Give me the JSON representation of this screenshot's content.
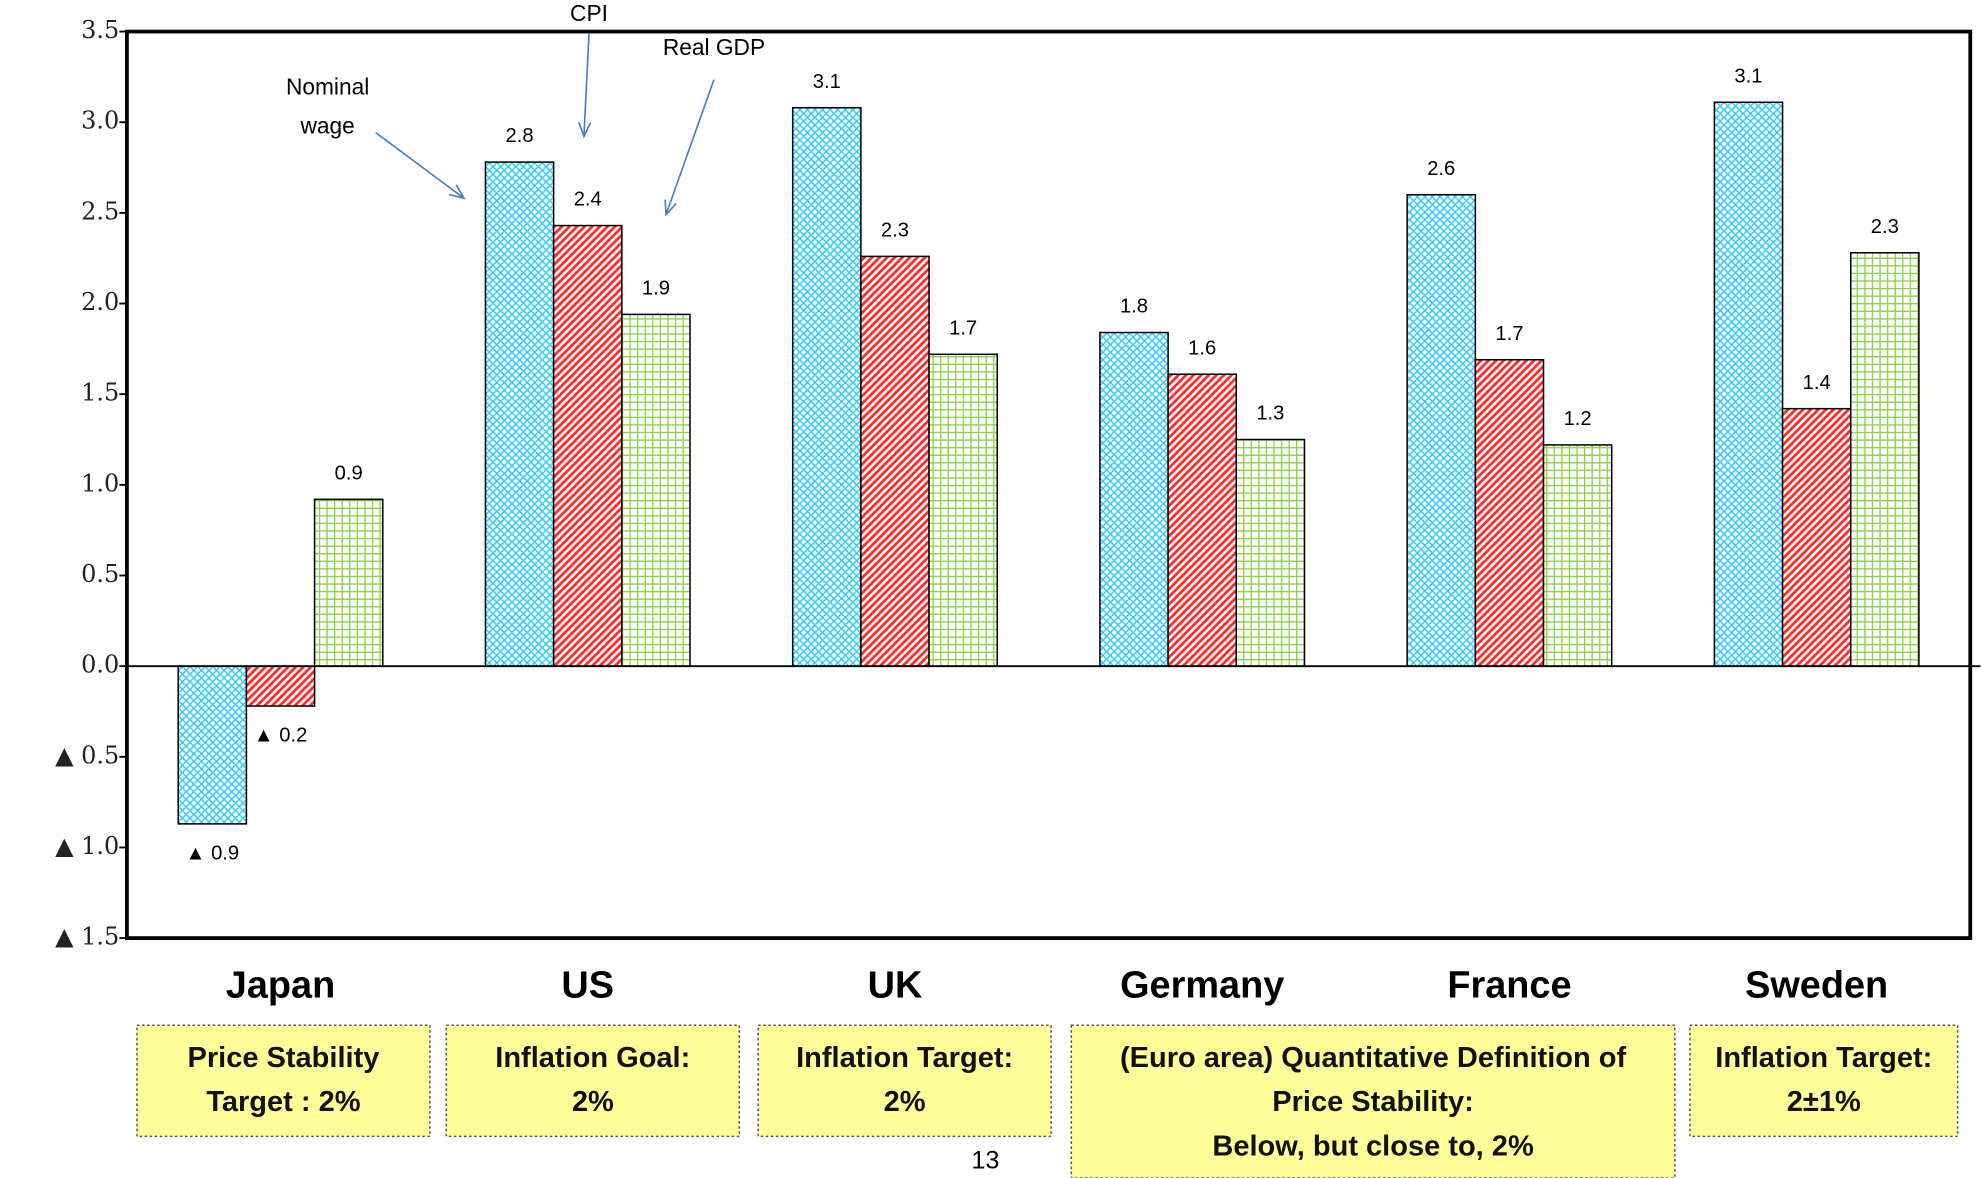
{
  "chart_data": {
    "type": "bar",
    "categories": [
      "Japan",
      "US",
      "UK",
      "Germany",
      "France",
      "Sweden"
    ],
    "series": [
      {
        "name": "Nominal wage",
        "color": "#33ccff",
        "hatch": "crosshatch",
        "values": [
          -0.87,
          2.78,
          3.08,
          1.84,
          2.6,
          3.11
        ],
        "value_labels": [
          "▲ 0.9",
          "2.8",
          "3.1",
          "1.8",
          "2.6",
          "3.1"
        ]
      },
      {
        "name": "CPI",
        "color": "#ff2a2a",
        "hatch": "diagonal",
        "values": [
          -0.22,
          2.43,
          2.26,
          1.61,
          1.69,
          1.42
        ],
        "value_labels": [
          "▲ 0.2",
          "2.4",
          "2.3",
          "1.6",
          "1.7",
          "1.4"
        ]
      },
      {
        "name": "Real GDP",
        "color": "#92d050",
        "hatch": "grid",
        "values": [
          0.92,
          1.94,
          1.72,
          1.25,
          1.22,
          2.28
        ],
        "value_labels": [
          "0.9",
          "1.9",
          "1.7",
          "1.3",
          "1.2",
          "2.3"
        ]
      }
    ],
    "ylim": [
      -1.5,
      3.5
    ],
    "yticks": [
      {
        "value": -1.5,
        "label": "▲ 1.5"
      },
      {
        "value": -1,
        "label": "▲ 1.0"
      },
      {
        "value": -0.5,
        "label": "▲ 0.5"
      },
      {
        "value": 0,
        "label": "0.0"
      },
      0.5,
      {
        "value": 1,
        "label": "1.0"
      },
      1.5,
      {
        "value": 2,
        "label": "2.0"
      },
      2.5,
      {
        "value": 3,
        "label": "3.0"
      },
      3.5
    ],
    "grid": false,
    "target_boxes": [
      {
        "lines": [
          "Price Stability",
          "Target : 2%"
        ]
      },
      {
        "lines": [
          "Inflation Goal:",
          "2%"
        ]
      },
      {
        "lines": [
          "Inflation Target:",
          "2%"
        ]
      },
      {
        "lines": [
          "(Euro area) Quantitative Definition of",
          "Price Stability:",
          "Below, but close to, 2%"
        ]
      },
      {
        "lines": [
          "Inflation Target:",
          "2±1%"
        ]
      }
    ]
  },
  "page_number": "13"
}
